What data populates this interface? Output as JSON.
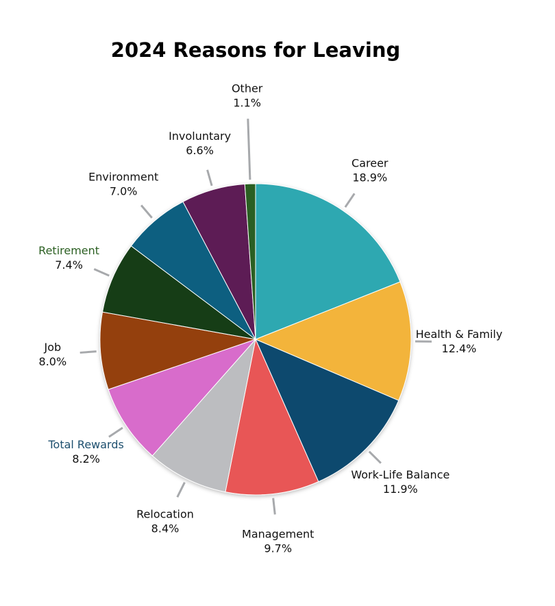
{
  "chart_data": {
    "type": "pie",
    "title": "2024 Reasons for Leaving",
    "categories": [
      "Career",
      "Health & Family",
      "Work-Life Balance",
      "Management",
      "Relocation",
      "Total Rewards",
      "Job",
      "Retirement",
      "Environment",
      "Involuntary",
      "Other"
    ],
    "values": [
      18.9,
      12.4,
      11.9,
      9.7,
      8.4,
      8.2,
      8.0,
      7.4,
      7.0,
      6.6,
      1.1
    ],
    "value_labels": [
      "18.9%",
      "12.4%",
      "11.9%",
      "9.7%",
      "8.4%",
      "8.2%",
      "8.0%",
      "7.4%",
      "7.0%",
      "6.6%",
      "1.1%"
    ],
    "colors": [
      "#2fa8b1",
      "#f3b43a",
      "#0d4a6e",
      "#e85656",
      "#bcbdc0",
      "#d86ccb",
      "#944010",
      "#143d18",
      "#0a5f80",
      "#5d1b55",
      "#2b5f22"
    ]
  }
}
